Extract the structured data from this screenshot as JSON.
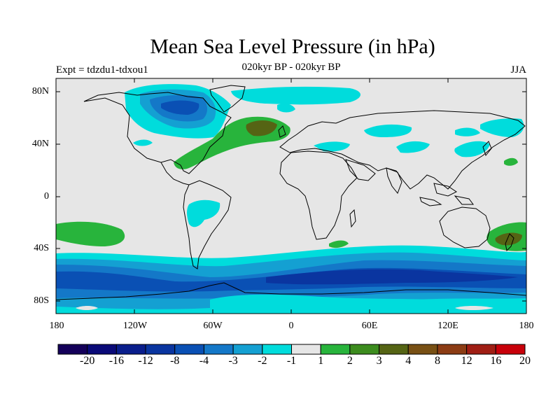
{
  "title": "Mean Sea Level Pressure (in hPa)",
  "subtitle": "020kyr BP - 020kyr BP",
  "expt_label": "Expt = tdzdu1-tdxou1",
  "season": "JJA",
  "lat_ticks": [
    "80N",
    "40N",
    "0",
    "40S",
    "80S"
  ],
  "lon_ticks": [
    "180",
    "120W",
    "60W",
    "0",
    "60E",
    "120E",
    "180"
  ],
  "colorbar": {
    "labels": [
      "-20",
      "-16",
      "-12",
      "-8",
      "-4",
      "-3",
      "-2",
      "-1",
      "1",
      "2",
      "3",
      "4",
      "8",
      "12",
      "16",
      "20"
    ],
    "colors": [
      "#14005a",
      "#0a0a78",
      "#0a1e8c",
      "#0a35a0",
      "#0a50b4",
      "#1478c8",
      "#14a0d2",
      "#00dcdc",
      "#e6e6e6",
      "#28b43c",
      "#3c8c1e",
      "#556414",
      "#785014",
      "#8c3c14",
      "#a01e14",
      "#c8000a"
    ]
  },
  "colors": {
    "land_background": "#e6e6e6",
    "coastline": "#000000"
  }
}
